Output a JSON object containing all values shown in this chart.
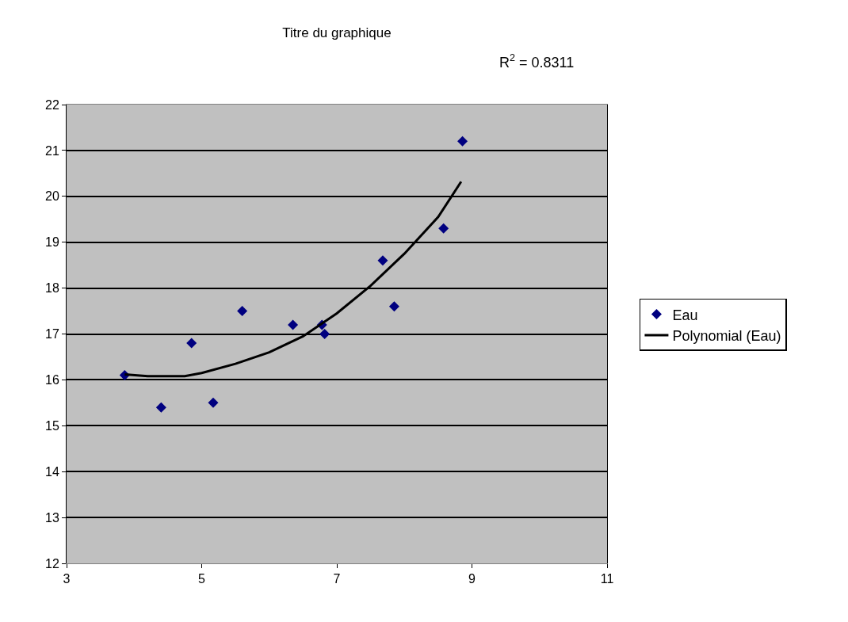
{
  "chart_data": {
    "type": "scatter",
    "title": "Titre du graphique",
    "annotations": [
      "R$^{2}$ = 0.8311"
    ],
    "series": [
      {
        "name": "Eau",
        "marker": "diamond",
        "color": "#000080",
        "x": [
          3.86,
          4.4,
          4.85,
          5.17,
          5.6,
          6.35,
          6.78,
          6.82,
          7.68,
          7.85,
          8.58,
          8.86
        ],
        "values": [
          16.1,
          15.4,
          16.8,
          15.5,
          17.5,
          17.2,
          17.2,
          17.0,
          18.6,
          17.6,
          19.3,
          21.2
        ]
      },
      {
        "name": "Polynomial (Eau)",
        "type": "line",
        "marker": "none",
        "line_style": "solid",
        "color": "#000000",
        "x": [
          3.86,
          4.2,
          4.75,
          5.0,
          5.5,
          6.0,
          6.5,
          7.0,
          7.5,
          8.0,
          8.5,
          8.84
        ],
        "values": [
          16.12,
          16.08,
          16.08,
          16.15,
          16.35,
          16.6,
          16.95,
          17.45,
          18.05,
          18.75,
          19.55,
          20.32
        ]
      }
    ],
    "xlim": [
      3,
      11
    ],
    "xticks": [
      3,
      5,
      7,
      9,
      11
    ],
    "ylim": [
      12,
      22
    ],
    "yticks": [
      12,
      13,
      14,
      15,
      16,
      17,
      18,
      19,
      20,
      21,
      22
    ],
    "grid": "y",
    "legend": "right"
  }
}
